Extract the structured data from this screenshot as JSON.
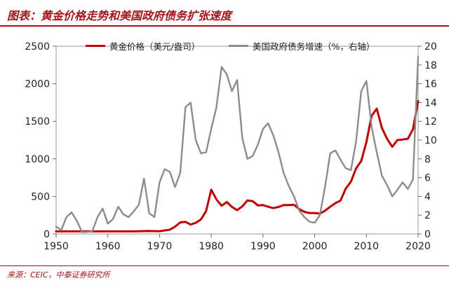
{
  "header": {
    "title": "图表：黄金价格走势和美国政府债务扩张速度"
  },
  "footer": {
    "source": "来源：CEIC，中泰证券研究所"
  },
  "chart_data": {
    "type": "line",
    "title": "图表：黄金价格走势和美国政府债务扩张速度",
    "grid": false,
    "legend_position": "top",
    "x_range": [
      1950,
      2020
    ],
    "x_ticks": [
      1950,
      1960,
      1970,
      1980,
      1990,
      2000,
      2010,
      2020
    ],
    "y_left_range": [
      0,
      2500
    ],
    "y_left_ticks": [
      0,
      500,
      1000,
      1500,
      2000,
      2500
    ],
    "y_right_range": [
      0,
      20
    ],
    "y_right_ticks": [
      0,
      2,
      4,
      6,
      8,
      10,
      12,
      14,
      16,
      18,
      20
    ],
    "series": [
      {
        "name": "黄金价格（美元/盎司）",
        "axis": "left",
        "color": "#c00000",
        "x": [
          1950,
          1955,
          1960,
          1965,
          1968,
          1970,
          1972,
          1973,
          1974,
          1975,
          1976,
          1977,
          1978,
          1979,
          1980,
          1981,
          1982,
          1983,
          1984,
          1985,
          1986,
          1987,
          1988,
          1989,
          1990,
          1991,
          1992,
          1993,
          1994,
          1995,
          1996,
          1997,
          1998,
          1999,
          2000,
          2001,
          2002,
          2003,
          2004,
          2005,
          2006,
          2007,
          2008,
          2009,
          2010,
          2011,
          2012,
          2013,
          2014,
          2015,
          2016,
          2017,
          2018,
          2019,
          2020
        ],
        "y": [
          35,
          35,
          35,
          35,
          39,
          36,
          58,
          97,
          154,
          161,
          125,
          148,
          193,
          306,
          590,
          460,
          376,
          424,
          361,
          317,
          368,
          447,
          437,
          381,
          384,
          363,
          344,
          360,
          384,
          384,
          388,
          331,
          294,
          279,
          279,
          271,
          310,
          363,
          410,
          445,
          604,
          696,
          872,
          972,
          1225,
          1572,
          1669,
          1411,
          1266,
          1160,
          1251,
          1257,
          1268,
          1393,
          1770
        ]
      },
      {
        "name": "美国政府债务增速（%，右轴）",
        "axis": "right",
        "color": "#8c8c8c",
        "x": [
          1950,
          1951,
          1952,
          1953,
          1954,
          1955,
          1956,
          1957,
          1958,
          1959,
          1960,
          1961,
          1962,
          1963,
          1964,
          1965,
          1966,
          1967,
          1968,
          1969,
          1970,
          1971,
          1972,
          1973,
          1974,
          1975,
          1976,
          1977,
          1978,
          1979,
          1980,
          1981,
          1982,
          1983,
          1984,
          1985,
          1986,
          1987,
          1988,
          1989,
          1990,
          1991,
          1992,
          1993,
          1994,
          1995,
          1996,
          1997,
          1998,
          1999,
          2000,
          2001,
          2002,
          2003,
          2004,
          2005,
          2006,
          2007,
          2008,
          2009,
          2010,
          2011,
          2012,
          2013,
          2014,
          2015,
          2016,
          2017,
          2018,
          2019,
          2020
        ],
        "y": [
          0.8,
          0.4,
          1.8,
          2.3,
          1.4,
          0.2,
          0.2,
          0.3,
          1.8,
          2.7,
          1.1,
          1.6,
          2.9,
          2.1,
          1.8,
          2.4,
          3.1,
          5.9,
          2.2,
          1.8,
          5.5,
          6.9,
          6.6,
          5.0,
          6.5,
          13.5,
          14.0,
          10.0,
          8.6,
          8.7,
          11.2,
          13.5,
          17.8,
          17.0,
          15.2,
          16.4,
          10.2,
          8.0,
          8.3,
          9.5,
          11.2,
          11.8,
          10.5,
          8.7,
          6.5,
          5.1,
          4.0,
          2.5,
          1.8,
          1.3,
          1.2,
          2.0,
          5.0,
          8.6,
          8.9,
          7.9,
          7.0,
          6.8,
          9.8,
          15.2,
          16.3,
          11.4,
          8.7,
          6.2,
          5.2,
          4.0,
          4.7,
          5.5,
          4.8,
          5.8,
          18.9
        ]
      }
    ]
  }
}
